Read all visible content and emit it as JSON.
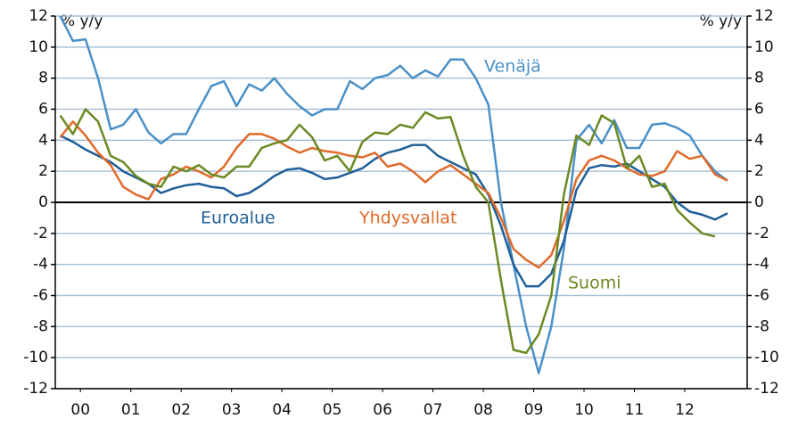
{
  "chart_data": {
    "type": "line",
    "y_label": "% y/y",
    "y2_label": "% y/y",
    "x": [
      2000.1,
      2000.35,
      2000.6,
      2000.85,
      2001.1,
      2001.35,
      2001.6,
      2001.85,
      2002.1,
      2002.35,
      2002.6,
      2002.85,
      2003.1,
      2003.35,
      2003.6,
      2003.85,
      2004.1,
      2004.35,
      2004.6,
      2004.85,
      2005.1,
      2005.35,
      2005.6,
      2005.85,
      2006.1,
      2006.35,
      2006.6,
      2006.85,
      2007.1,
      2007.35,
      2007.6,
      2007.85,
      2008.1,
      2008.35,
      2008.6,
      2008.85,
      2009.1,
      2009.35,
      2009.6,
      2009.85,
      2010.1,
      2010.35,
      2010.6,
      2010.85,
      2011.1,
      2011.35,
      2011.6,
      2011.85,
      2012.1,
      2012.35,
      2012.6,
      2012.85,
      2013.1,
      2013.35
    ],
    "series": [
      {
        "name": "Venäjä",
        "color": "#4a90c8",
        "values": [
          12,
          10.4,
          10.5,
          8,
          4.7,
          5,
          6,
          4.5,
          3.8,
          4.4,
          4.4,
          6,
          7.5,
          7.8,
          6.2,
          7.6,
          7.2,
          8,
          7,
          6.2,
          5.6,
          6,
          6,
          7.8,
          7.3,
          8,
          8.2,
          8.8,
          8,
          8.5,
          8.1,
          9.2,
          9.2,
          8,
          6.3,
          0,
          -4,
          -8,
          -11,
          -8,
          -3,
          4,
          5,
          3.8,
          5.3,
          3.5,
          3.5,
          5,
          5.1,
          4.8,
          4.3,
          3,
          2,
          1.4
        ]
      },
      {
        "name": "Euroalue",
        "color": "#1f5f99",
        "values": [
          4.3,
          3.9,
          3.4,
          3.0,
          2.6,
          2.0,
          1.6,
          1.2,
          0.6,
          0.9,
          1.1,
          1.2,
          1.0,
          0.9,
          0.4,
          0.6,
          1.1,
          1.7,
          2.1,
          2.2,
          1.9,
          1.5,
          1.6,
          1.9,
          2.2,
          2.8,
          3.2,
          3.4,
          3.7,
          3.7,
          3.0,
          2.6,
          2.2,
          1.8,
          0.5,
          -1.5,
          -4,
          -5.4,
          -5.4,
          -4.6,
          -2.5,
          0.8,
          2.2,
          2.4,
          2.3,
          2.5,
          2.0,
          1.5,
          1.0,
          0,
          -0.6,
          -0.8,
          -1.1,
          -0.7
        ]
      },
      {
        "name": "Yhdysvallat",
        "color": "#e06a2a",
        "values": [
          4.2,
          5.2,
          4.3,
          3.2,
          2.4,
          1.0,
          0.5,
          0.2,
          1.5,
          1.8,
          2.3,
          2.0,
          1.6,
          2.3,
          3.5,
          4.4,
          4.4,
          4.1,
          3.6,
          3.2,
          3.5,
          3.3,
          3.2,
          3.0,
          2.9,
          3.2,
          2.3,
          2.5,
          2.0,
          1.3,
          2.0,
          2.4,
          1.8,
          1.2,
          0.6,
          -1,
          -3,
          -3.7,
          -4.2,
          -3.4,
          -1.2,
          1.5,
          2.7,
          3.0,
          2.7,
          2.2,
          1.8,
          1.7,
          2.0,
          3.3,
          2.8,
          3.0,
          1.8,
          1.4
        ]
      },
      {
        "name": "Suomi",
        "color": "#6b8a23",
        "values": [
          5.6,
          4.4,
          6.0,
          5.2,
          3.0,
          2.6,
          1.7,
          1.2,
          1.0,
          2.3,
          2.0,
          2.4,
          1.8,
          1.6,
          2.3,
          2.3,
          3.5,
          3.8,
          4.0,
          5.0,
          4.2,
          2.7,
          3.0,
          2.0,
          3.9,
          4.5,
          4.4,
          5.0,
          4.8,
          5.8,
          5.4,
          5.5,
          3.0,
          1.0,
          0,
          -5,
          -9.5,
          -9.7,
          -8.5,
          -6,
          0.5,
          4.3,
          3.7,
          5.6,
          5.1,
          2.2,
          3.0,
          1.0,
          1.2,
          -0.5,
          -1.3,
          -2.0,
          -2.2,
          null
        ]
      }
    ],
    "xlim": [
      2000,
      2013.74
    ],
    "xticks": [
      {
        "value": 2000.5,
        "label": "00"
      },
      {
        "value": 2001.5,
        "label": "01"
      },
      {
        "value": 2002.5,
        "label": "02"
      },
      {
        "value": 2003.5,
        "label": "03"
      },
      {
        "value": 2004.5,
        "label": "04"
      },
      {
        "value": 2005.5,
        "label": "05"
      },
      {
        "value": 2006.5,
        "label": "06"
      },
      {
        "value": 2007.5,
        "label": "07"
      },
      {
        "value": 2008.5,
        "label": "08"
      },
      {
        "value": 2009.5,
        "label": "09"
      },
      {
        "value": 2010.5,
        "label": "10"
      },
      {
        "value": 2011.5,
        "label": "11"
      },
      {
        "value": 2012.5,
        "label": "12"
      }
    ],
    "ylim": [
      -12,
      12
    ],
    "yticks": [
      -12,
      -10,
      -8,
      -6,
      -4,
      -2,
      0,
      2,
      4,
      6,
      8,
      10,
      12
    ],
    "y2lim": [
      -12,
      12
    ],
    "y2ticks": [
      -12,
      -10,
      -8,
      -6,
      -4,
      -2,
      0,
      2,
      4,
      6,
      8,
      10,
      12
    ],
    "grid": true
  }
}
